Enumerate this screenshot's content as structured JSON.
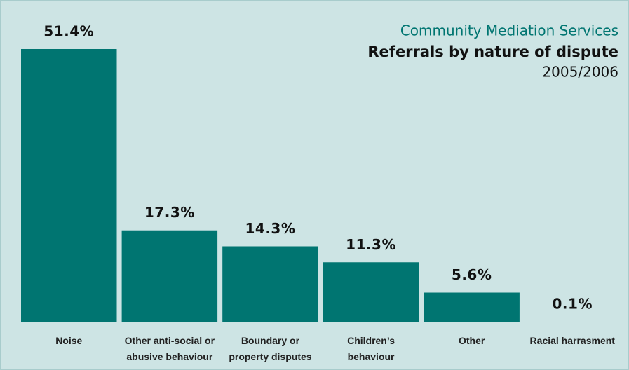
{
  "chart_data": {
    "type": "bar",
    "header": "Community Mediation Services",
    "title": "Referrals by nature of dispute",
    "subtitle": "2005/2006",
    "categories": [
      "Noise",
      "Other anti-social or\nabusive behaviour",
      "Boundary or\nproperty disputes",
      "Children’s\nbehaviour",
      "Other",
      "Racial harrasment"
    ],
    "values": [
      51.4,
      17.3,
      14.3,
      11.3,
      5.6,
      0.1
    ],
    "value_labels": [
      "51.4%",
      "17.3%",
      "14.3%",
      "11.3%",
      "5.6%",
      "0.1%"
    ],
    "color": "#007571"
  }
}
